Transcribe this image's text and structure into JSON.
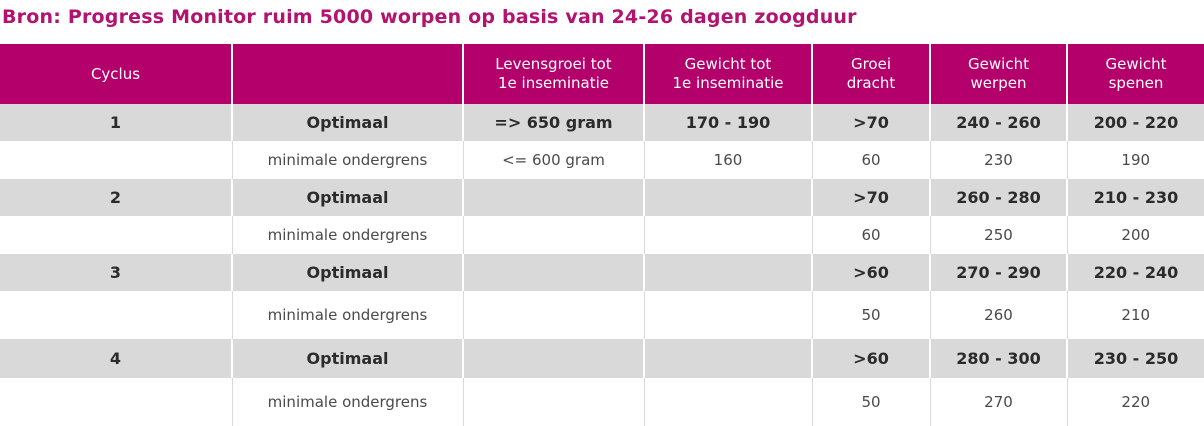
{
  "title": "Bron: Progress Monitor ruim 5000 worpen op basis van 24-26 dagen zoogduur",
  "headers": {
    "cyclus": "Cyclus",
    "blank": "",
    "levensgroei_l1": "Levensgroei tot",
    "levensgroei_l2": "1e inseminatie",
    "gewicht_l1": "Gewicht tot",
    "gewicht_l2": "1e inseminatie",
    "groei_l1": "Groei",
    "groei_l2": "dracht",
    "werpen_l1": "Gewicht",
    "werpen_l2": "werpen",
    "spenen_l1": "Gewicht",
    "spenen_l2": "spenen"
  },
  "rows": [
    {
      "cyclus": "1",
      "type": "Optimaal",
      "levensgroei": "=> 650 gram",
      "gewicht_ins": "170 - 190",
      "groei": ">70",
      "werpen": "240 - 260",
      "spenen": "200 - 220"
    },
    {
      "cyclus": "",
      "type": "minimale ondergrens",
      "levensgroei": "<= 600 gram",
      "gewicht_ins": "160",
      "groei": "60",
      "werpen": "230",
      "spenen": "190"
    },
    {
      "cyclus": "2",
      "type": "Optimaal",
      "levensgroei": "",
      "gewicht_ins": "",
      "groei": ">70",
      "werpen": "260 - 280",
      "spenen": "210 - 230"
    },
    {
      "cyclus": "",
      "type": "minimale ondergrens",
      "levensgroei": "",
      "gewicht_ins": "",
      "groei": "60",
      "werpen": "250",
      "spenen": "200"
    },
    {
      "cyclus": "3",
      "type": "Optimaal",
      "levensgroei": "",
      "gewicht_ins": "",
      "groei": ">60",
      "werpen": "270 - 290",
      "spenen": "220 - 240"
    },
    {
      "cyclus": "",
      "type": "minimale ondergrens",
      "levensgroei": "",
      "gewicht_ins": "",
      "groei": "50",
      "werpen": "260",
      "spenen": "210"
    },
    {
      "cyclus": "4",
      "type": "Optimaal",
      "levensgroei": "",
      "gewicht_ins": "",
      "groei": ">60",
      "werpen": "280 - 300",
      "spenen": "230 - 250"
    },
    {
      "cyclus": "",
      "type": "minimale ondergrens",
      "levensgroei": "",
      "gewicht_ins": "",
      "groei": "50",
      "werpen": "270",
      "spenen": "220"
    }
  ],
  "colors": {
    "title": "#b3126f",
    "header_bg": "#b3006a",
    "optimal_row_bg": "#d9d9d9"
  }
}
